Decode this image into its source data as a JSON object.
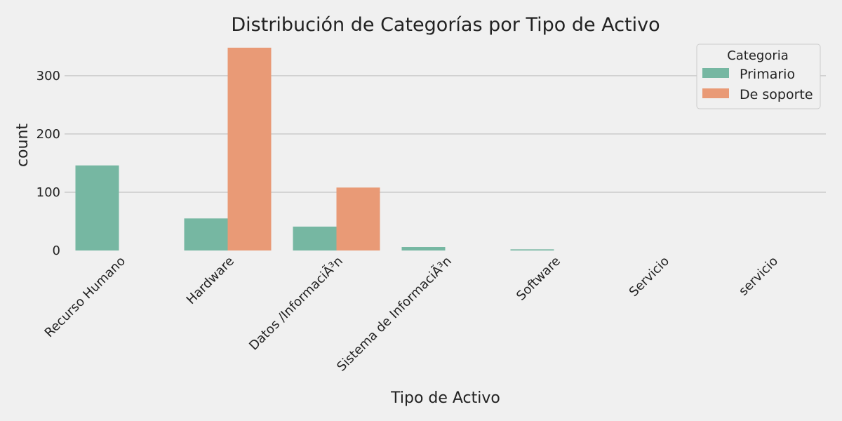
{
  "chart_data": {
    "type": "bar",
    "title": "Distribución de Categorías por Tipo de Activo",
    "xlabel": "Tipo de Activo",
    "ylabel": "count",
    "categories": [
      "Recurso Humano",
      "Hardware",
      "Datos /InformaciÃ³n",
      "Sistema de InformaciÃ³n",
      "Software",
      "Servicio",
      "servicio"
    ],
    "series": [
      {
        "name": "Primario",
        "values": [
          146,
          55,
          41,
          6,
          2,
          0,
          0
        ],
        "color": "#76b7a2"
      },
      {
        "name": "De soporte",
        "values": [
          0,
          348,
          108,
          0,
          0,
          0,
          0
        ],
        "color": "#e99a76"
      }
    ],
    "ylim": [
      0,
      360
    ],
    "yticks": [
      0,
      100,
      200,
      300
    ],
    "grid": "horizontal",
    "legend": {
      "title": "Categoria",
      "position": "top-right"
    }
  }
}
